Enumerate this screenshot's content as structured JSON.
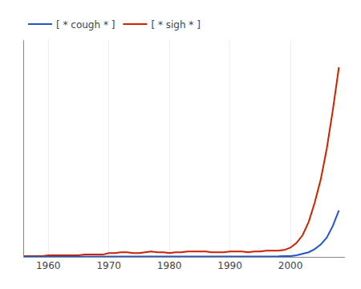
{
  "chart_data": {
    "type": "line",
    "x": [
      1956,
      1957,
      1958,
      1959,
      1960,
      1961,
      1962,
      1963,
      1964,
      1965,
      1966,
      1967,
      1968,
      1969,
      1970,
      1971,
      1972,
      1973,
      1974,
      1975,
      1976,
      1977,
      1978,
      1979,
      1980,
      1981,
      1982,
      1983,
      1984,
      1985,
      1986,
      1987,
      1988,
      1989,
      1990,
      1991,
      1992,
      1993,
      1994,
      1995,
      1996,
      1997,
      1998,
      1999,
      2000,
      2001,
      2002,
      2003,
      2004,
      2005,
      2006,
      2007,
      2008
    ],
    "series": [
      {
        "name": "[ * sigh * ]",
        "color": "#cc2200",
        "values": [
          0.001,
          0.001,
          0.001,
          0.001,
          0.002,
          0.002,
          0.002,
          0.002,
          0.002,
          0.002,
          0.003,
          0.003,
          0.003,
          0.003,
          0.005,
          0.005,
          0.006,
          0.006,
          0.005,
          0.005,
          0.006,
          0.007,
          0.006,
          0.006,
          0.005,
          0.006,
          0.006,
          0.007,
          0.007,
          0.007,
          0.007,
          0.006,
          0.006,
          0.006,
          0.007,
          0.007,
          0.007,
          0.006,
          0.007,
          0.007,
          0.008,
          0.008,
          0.008,
          0.009,
          0.012,
          0.018,
          0.028,
          0.045,
          0.07,
          0.1,
          0.14,
          0.19,
          0.245
        ]
      },
      {
        "name": "[ * cough * ]",
        "color": "#2255cc",
        "values": [
          0.0002,
          0.0002,
          0.0002,
          0.0002,
          0.0002,
          0.0002,
          0.0002,
          0.0002,
          0.0002,
          0.0002,
          0.0002,
          0.0002,
          0.0002,
          0.0002,
          0.0002,
          0.0002,
          0.0002,
          0.0002,
          0.0002,
          0.0002,
          0.0002,
          0.0002,
          0.0002,
          0.0002,
          0.0002,
          0.0002,
          0.0002,
          0.0002,
          0.0002,
          0.0002,
          0.0002,
          0.0002,
          0.0002,
          0.0002,
          0.0004,
          0.0004,
          0.0004,
          0.0004,
          0.0005,
          0.0005,
          0.0006,
          0.0007,
          0.0008,
          0.001,
          0.001,
          0.002,
          0.004,
          0.006,
          0.01,
          0.016,
          0.025,
          0.04,
          0.06
        ]
      }
    ],
    "xlim": [
      1956,
      2009
    ],
    "ylim": [
      0,
      0.28
    ],
    "xticks": [
      1960,
      1970,
      1980,
      1990,
      2000
    ],
    "yticks": [],
    "grid": true,
    "tick_labels": "x",
    "legend": "upper left"
  }
}
